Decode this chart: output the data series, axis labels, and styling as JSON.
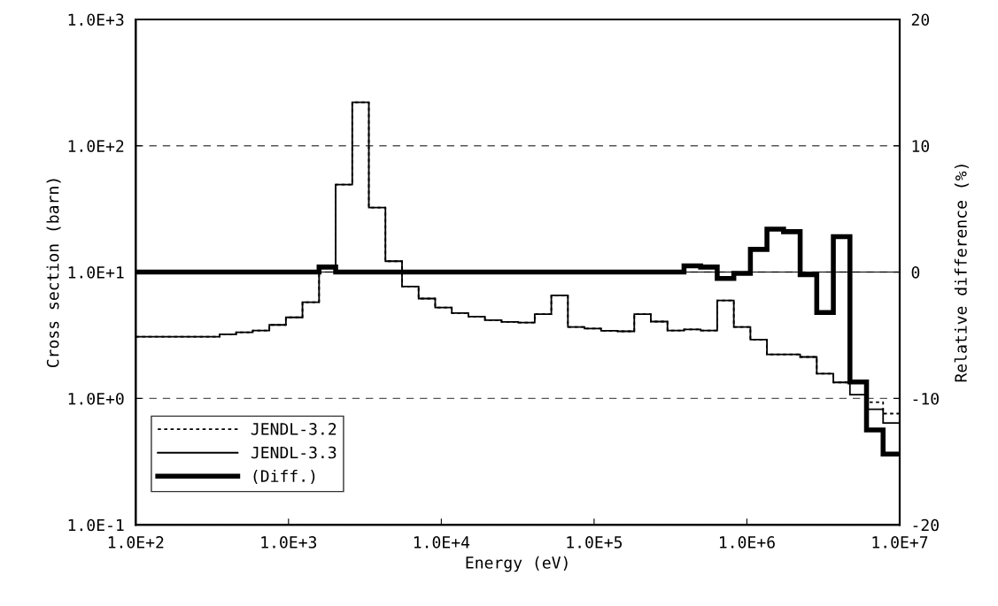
{
  "chart_data": {
    "type": "step",
    "xlabel": "Energy (eV)",
    "ylabel": "Cross section (barn)",
    "y2label": "Relative difference (%)",
    "log": "xy",
    "x": [
      100,
      130,
      167,
      214,
      275,
      354,
      454,
      583,
      749,
      961,
      1234,
      1585,
      2035,
      2613,
      3355,
      4307,
      5531,
      7102,
      9119,
      11710,
      15030,
      19300,
      24790,
      31830,
      40870,
      52480,
      67380,
      86520,
      111100,
      142600,
      183200,
      235200,
      302000,
      387700,
      497900,
      639300,
      820900,
      1054000,
      1353000,
      1738000,
      2231000,
      2865000,
      3679000,
      4724000,
      6065000,
      7788000,
      10000000
    ],
    "series": [
      {
        "name": "JENDL-3.2",
        "color": "#000000",
        "line_style": "dotted",
        "values": [
          3.08,
          3.08,
          3.08,
          3.08,
          3.08,
          3.22,
          3.34,
          3.45,
          3.82,
          4.38,
          5.78,
          10.9,
          49.3,
          221,
          32.4,
          12.2,
          7.69,
          6.17,
          5.25,
          4.74,
          4.45,
          4.17,
          4.04,
          3.99,
          4.64,
          6.55,
          3.68,
          3.58,
          3.43,
          3.4,
          4.64,
          4.06,
          3.45,
          3.52,
          3.45,
          5.97,
          3.68,
          2.92,
          2.23,
          2.23,
          2.13,
          1.57,
          1.34,
          1.33,
          0.935,
          0.759,
          0.759
        ]
      },
      {
        "name": "JENDL-3.3",
        "color": "#000000",
        "line_style": "solid",
        "values": [
          3.08,
          3.08,
          3.08,
          3.08,
          3.08,
          3.22,
          3.34,
          3.45,
          3.82,
          4.38,
          5.78,
          10.9,
          49.3,
          221,
          32.4,
          12.2,
          7.69,
          6.17,
          5.25,
          4.74,
          4.45,
          4.17,
          4.04,
          3.99,
          4.64,
          6.55,
          3.68,
          3.58,
          3.43,
          3.4,
          4.64,
          4.06,
          3.45,
          3.52,
          3.45,
          5.97,
          3.68,
          2.92,
          2.23,
          2.23,
          2.13,
          1.57,
          1.34,
          1.07,
          0.822,
          0.64,
          0.64
        ]
      },
      {
        "name": "(Diff.)",
        "color": "#000000",
        "line_style": "solid",
        "axis": "y2",
        "values": [
          0,
          0,
          0,
          0,
          0,
          0,
          0,
          0,
          0,
          0,
          0,
          0.4,
          0,
          0,
          0,
          0,
          0,
          0,
          0,
          0,
          0,
          0,
          0,
          0,
          0,
          0,
          0,
          0,
          0,
          0,
          0,
          0,
          0,
          0.5,
          0.4,
          -0.5,
          -0.1,
          1.8,
          3.4,
          3.2,
          -0.2,
          -3.2,
          2.8,
          -8.7,
          -12.5,
          -14.4,
          -14.4
        ]
      }
    ],
    "xlim": [
      100,
      10000000
    ],
    "xticks": [
      {
        "value": 100,
        "label": "1.0E+2"
      },
      {
        "value": 1000,
        "label": "1.0E+3"
      },
      {
        "value": 10000,
        "label": "1.0E+4"
      },
      {
        "value": 100000,
        "label": "1.0E+5"
      },
      {
        "value": 1000000,
        "label": "1.0E+6"
      },
      {
        "value": 10000000,
        "label": "1.0E+7"
      }
    ],
    "ylim": [
      0.1,
      1000
    ],
    "yticks": [
      {
        "value": 0.1,
        "label": "1.0E-1"
      },
      {
        "value": 1,
        "label": "1.0E+0"
      },
      {
        "value": 10,
        "label": "1.0E+1"
      },
      {
        "value": 100,
        "label": "1.0E+2"
      },
      {
        "value": 1000,
        "label": "1.0E+3"
      }
    ],
    "y2lim": [
      -20,
      20
    ],
    "y2ticks": [
      -20,
      -10,
      0,
      10,
      20
    ],
    "ref_lines": [
      {
        "axis": "y2",
        "value": 0,
        "color": "#000000",
        "line_style": "solid"
      }
    ],
    "grid": "y",
    "legend": "bottom left"
  }
}
